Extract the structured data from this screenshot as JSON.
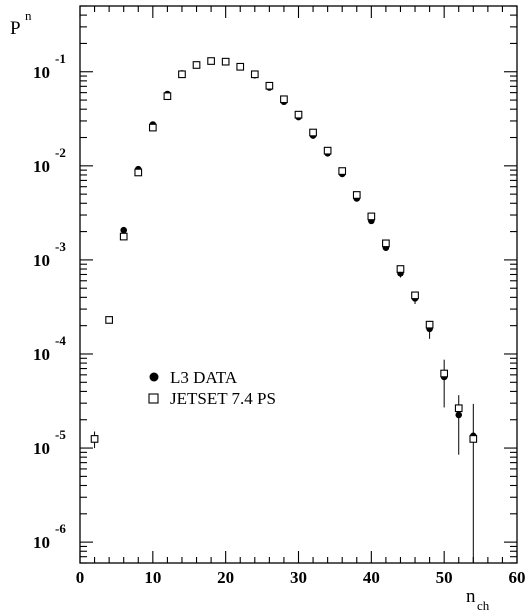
{
  "chart_data": {
    "type": "scatter",
    "ylabel": "P",
    "ylabel_sub": "n",
    "xlabel": "n",
    "xlabel_sub": "ch",
    "y_scale": "log",
    "xlim": [
      0,
      60
    ],
    "ylim": [
      6e-07,
      0.5
    ],
    "x_ticks": [
      {
        "value": 0,
        "label": "0"
      },
      {
        "value": 10,
        "label": "10"
      },
      {
        "value": 20,
        "label": "20"
      },
      {
        "value": 30,
        "label": "30"
      },
      {
        "value": 40,
        "label": "40"
      },
      {
        "value": 50,
        "label": "50"
      },
      {
        "value": 60,
        "label": "60"
      }
    ],
    "y_ticks": [
      {
        "value": 0.1,
        "base": "10",
        "exp": "-1"
      },
      {
        "value": 0.01,
        "base": "10",
        "exp": "-2"
      },
      {
        "value": 0.001,
        "base": "10",
        "exp": "-3"
      },
      {
        "value": 0.0001,
        "base": "10",
        "exp": "-4"
      },
      {
        "value": 1e-05,
        "base": "10",
        "exp": "-5"
      },
      {
        "value": 1e-06,
        "base": "10",
        "exp": "-6"
      }
    ],
    "grid": false,
    "legend_position": "lower-left",
    "series": [
      {
        "name": "L3 DATA",
        "marker": "filled-circle",
        "x": [
          6,
          8,
          10,
          12,
          14,
          16,
          18,
          20,
          22,
          24,
          26,
          28,
          30,
          32,
          34,
          36,
          38,
          40,
          42,
          44,
          46,
          48,
          50,
          52,
          54
        ],
        "y": [
          0.00207,
          0.0092,
          0.0275,
          0.058,
          0.096,
          0.118,
          0.13,
          0.128,
          0.112,
          0.092,
          0.068,
          0.048,
          0.033,
          0.021,
          0.0136,
          0.0082,
          0.0045,
          0.0026,
          0.00135,
          0.00072,
          0.00039,
          0.000185,
          5.7e-05,
          2.25e-05,
          1.35e-05
        ],
        "err_low": [
          0,
          0,
          0,
          0,
          0,
          0,
          0,
          0,
          0,
          0,
          0,
          0,
          0,
          0,
          0,
          0,
          0,
          0,
          0.0001,
          7e-05,
          5e-05,
          4e-05,
          3e-05,
          1.4e-05,
          1.34e-05
        ],
        "err_high": [
          0,
          0,
          0,
          0,
          0,
          0,
          0,
          0,
          0,
          0,
          0,
          0,
          0,
          0,
          0,
          0,
          0,
          0,
          0.0001,
          7e-05,
          5e-05,
          4e-05,
          3e-05,
          1.4e-05,
          1.6e-05
        ]
      },
      {
        "name": "JETSET 7.4 PS",
        "marker": "open-square",
        "x": [
          2,
          4,
          6,
          8,
          10,
          12,
          14,
          16,
          18,
          20,
          22,
          24,
          26,
          28,
          30,
          32,
          34,
          36,
          38,
          40,
          42,
          44,
          46,
          48,
          50,
          52,
          54
        ],
        "y": [
          1.25e-05,
          0.00023,
          0.00177,
          0.0085,
          0.0255,
          0.055,
          0.094,
          0.118,
          0.13,
          0.128,
          0.113,
          0.094,
          0.071,
          0.051,
          0.035,
          0.0226,
          0.0145,
          0.0088,
          0.0049,
          0.0029,
          0.0015,
          0.0008,
          0.00042,
          0.000205,
          6.2e-05,
          2.65e-05,
          1.25e-05
        ],
        "err_low": [
          2.5e-06,
          0,
          0,
          0,
          0,
          0,
          0,
          0,
          0,
          0,
          0,
          0,
          0,
          0,
          0,
          0,
          0,
          0,
          0,
          0,
          0,
          0,
          0,
          0,
          0,
          0,
          0
        ],
        "err_high": [
          2.5e-06,
          0,
          0,
          0,
          0,
          0,
          0,
          0,
          0,
          0,
          0,
          0,
          0,
          0,
          0,
          0,
          0,
          0,
          0,
          0,
          0,
          0,
          0,
          0,
          0,
          0,
          0
        ]
      }
    ]
  }
}
